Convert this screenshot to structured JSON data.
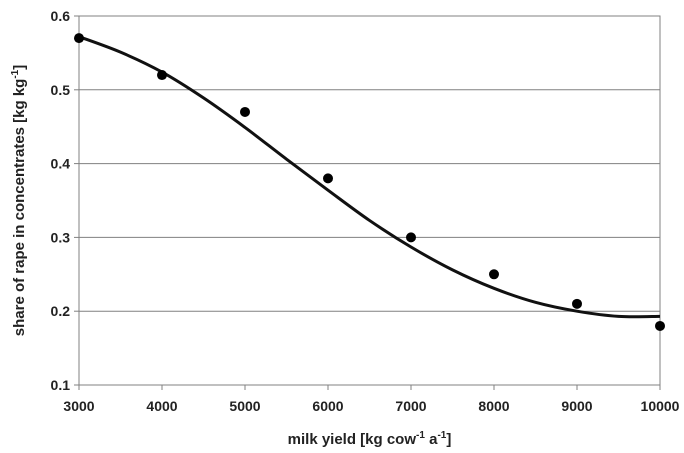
{
  "chart_data": {
    "type": "scatter",
    "title": "",
    "xlabel": {
      "main": "milk yield [kg cow",
      "sup1": "-1",
      "mid": " a",
      "sup2": "-1",
      "end": "]"
    },
    "ylabel": {
      "main": "share of rape  in concentrates [kg kg",
      "sup1": "-1",
      "end": "]"
    },
    "xlim": [
      3000,
      10000
    ],
    "ylim": [
      0.1,
      0.6
    ],
    "x_ticks": [
      "3000",
      "4000",
      "5000",
      "6000",
      "7000",
      "8000",
      "9000",
      "10000"
    ],
    "y_ticks": [
      "0.1",
      "0.2",
      "0.3",
      "0.4",
      "0.5",
      "0.6"
    ],
    "grid": "horizontal",
    "series": [
      {
        "kind": "points",
        "x": [
          3000,
          4000,
          5000,
          6000,
          7000,
          8000,
          9000,
          10000
        ],
        "y": [
          0.57,
          0.52,
          0.47,
          0.38,
          0.3,
          0.25,
          0.21,
          0.18
        ]
      },
      {
        "kind": "fitted-curve",
        "x": [
          3000,
          3500,
          4000,
          4500,
          5000,
          5500,
          6000,
          6500,
          7000,
          7500,
          8000,
          8500,
          9000,
          9500,
          10000
        ],
        "y": [
          0.572,
          0.551,
          0.524,
          0.489,
          0.449,
          0.406,
          0.364,
          0.323,
          0.287,
          0.256,
          0.231,
          0.212,
          0.2,
          0.193,
          0.193
        ]
      }
    ]
  }
}
